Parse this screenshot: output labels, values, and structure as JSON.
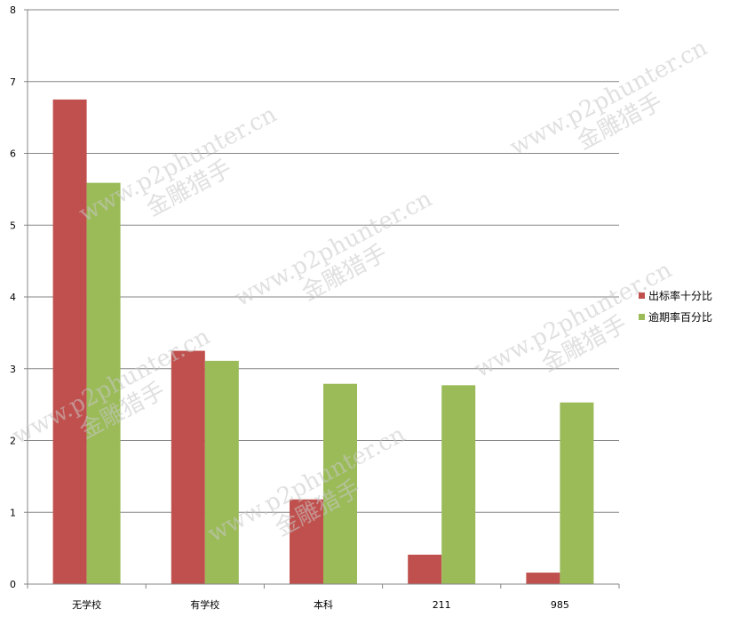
{
  "chart_data": {
    "type": "bar",
    "categories": [
      "无学校",
      "有学校",
      "本科",
      "211",
      "985"
    ],
    "series": [
      {
        "name": "出标率十分比",
        "values": [
          6.75,
          3.25,
          1.18,
          0.41,
          0.16
        ],
        "color": "#c0504d"
      },
      {
        "name": "逾期率百分比",
        "values": [
          5.59,
          3.11,
          2.79,
          2.77,
          2.53
        ],
        "color": "#9bbb59"
      }
    ],
    "ylim": [
      0,
      8
    ],
    "yticks": [
      0,
      1,
      2,
      3,
      4,
      5,
      6,
      7,
      8
    ],
    "grid": true,
    "legend_position": "right",
    "title": "",
    "xlabel": "",
    "ylabel": ""
  },
  "watermark": {
    "line1": "www.p2phunter.cn",
    "line2": "金雕猎手"
  }
}
